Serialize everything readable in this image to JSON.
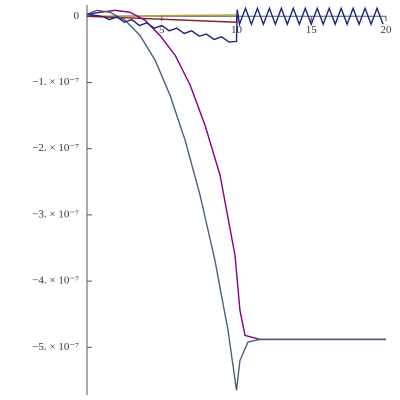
{
  "chart_data": {
    "type": "line",
    "xlim": [
      0,
      20
    ],
    "ylim": [
      -5.72e-07,
      1.7e-08
    ],
    "xticks": [
      5,
      10,
      15,
      20
    ],
    "yticks": [
      0,
      {
        "value": -1e-07,
        "label": "−1. × 10⁻⁷"
      },
      {
        "value": -2e-07,
        "label": "−2. × 10⁻⁷"
      },
      {
        "value": -3e-07,
        "label": "−3. × 10⁻⁷"
      },
      {
        "value": -4e-07,
        "label": "−4. × 10⁻⁷"
      },
      {
        "value": -5e-07,
        "label": "−5. × 10⁻⁷"
      }
    ],
    "series": [
      {
        "color": "#b0a040",
        "x": [
          0,
          10
        ],
        "values": [
          0,
          2e-09
        ]
      },
      {
        "color": "#8b1a1a",
        "x": [
          0,
          10,
          10.05
        ],
        "values": [
          0,
          -9e-09,
          0
        ]
      },
      {
        "color": "#800080",
        "x": [
          0,
          0.87,
          1.87,
          2.88,
          3.88,
          4.88,
          5.9,
          6.9,
          7.9,
          8.9,
          9.9,
          10.23,
          10.57,
          11.57,
          20
        ],
        "values": [
          3e-09,
          6e-09,
          9e-09,
          6e-09,
          -6e-09,
          -2.9e-08,
          -5.9e-08,
          -1.04e-07,
          -1.65e-07,
          -2.4e-07,
          -3.61e-07,
          -4.44e-07,
          -4.82e-07,
          -4.88e-07,
          -4.88e-07
        ]
      },
      {
        "color": "#4a6080",
        "x": [
          0,
          0.67,
          1.54,
          2.54,
          3.55,
          4.55,
          5.55,
          6.56,
          7.56,
          8.56,
          9.43,
          10,
          10.23,
          10.77,
          11.57,
          20
        ],
        "values": [
          3e-09,
          9e-09,
          6e-09,
          -6e-09,
          -2.9e-08,
          -6.6e-08,
          -1.19e-07,
          -1.87e-07,
          -2.7e-07,
          -3.69e-07,
          -4.74e-07,
          -5.65e-07,
          -5.2e-07,
          -4.92e-07,
          -4.88e-07,
          -4.88e-07
        ]
      },
      {
        "color": "#1a237e",
        "x": [
          0,
          1,
          1.5,
          2,
          2.5,
          3,
          3.5,
          4,
          4.5,
          5,
          5.5,
          6,
          6.5,
          7,
          7.5,
          8,
          8.5,
          9,
          9.5,
          10,
          10.05,
          10.2,
          10.6,
          11,
          11.4,
          11.8,
          12.2,
          12.6,
          13,
          13.4,
          13.8,
          14.2,
          14.6,
          15,
          15.4,
          15.8,
          16.2,
          16.6,
          17,
          17.4,
          17.8,
          18.2,
          18.6,
          19,
          19.4,
          19.8
        ],
        "values": [
          3e-09,
          0,
          -5e-09,
          -1e-09,
          -9e-09,
          -5e-09,
          -1.4e-08,
          -1e-08,
          -1.8e-08,
          -1.4e-08,
          -2.2e-08,
          -1.8e-08,
          -2.6e-08,
          -2.2e-08,
          -3e-08,
          -2.7e-08,
          -3.5e-08,
          -3.1e-08,
          -3.9e-08,
          -3.8e-08,
          1e-08,
          -1.2e-08,
          1.2e-08,
          -1.2e-08,
          1.2e-08,
          -1.2e-08,
          1.2e-08,
          -1.2e-08,
          1.2e-08,
          -1.2e-08,
          1.2e-08,
          -1.2e-08,
          1.2e-08,
          -1.2e-08,
          1.2e-08,
          -1.2e-08,
          1.2e-08,
          -1.2e-08,
          1.2e-08,
          -1.2e-08,
          1.2e-08,
          -1.2e-08,
          1.2e-08,
          -1.2e-08,
          1.2e-08,
          -1.2e-08
        ]
      }
    ]
  }
}
